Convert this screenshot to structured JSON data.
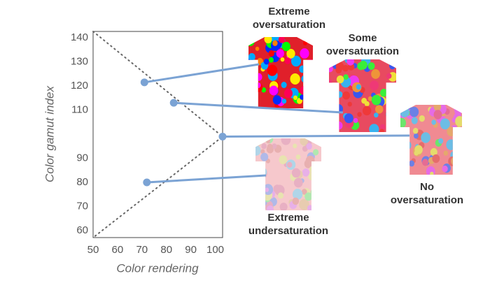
{
  "chart_data": {
    "type": "scatter",
    "x_label": "Color rendering",
    "y_label": "Color gamut index",
    "xlim": [
      50,
      103
    ],
    "xticks": [
      50,
      60,
      70,
      80,
      90,
      100
    ],
    "ylim": [
      57,
      143
    ],
    "yticks": [
      140,
      130,
      120,
      110,
      90,
      80,
      70,
      60
    ],
    "color": "#7ba3d4",
    "points": [
      {
        "x": 71,
        "y": 121.5,
        "label": [
          "Extreme",
          "oversaturation"
        ]
      },
      {
        "x": 83,
        "y": 113,
        "label": [
          "Some",
          "oversaturation"
        ]
      },
      {
        "x": 103,
        "y": 99,
        "label": [
          "No",
          "oversaturation"
        ]
      },
      {
        "x": 72,
        "y": 80,
        "label": [
          "Extreme",
          "undersaturation"
        ]
      }
    ]
  }
}
